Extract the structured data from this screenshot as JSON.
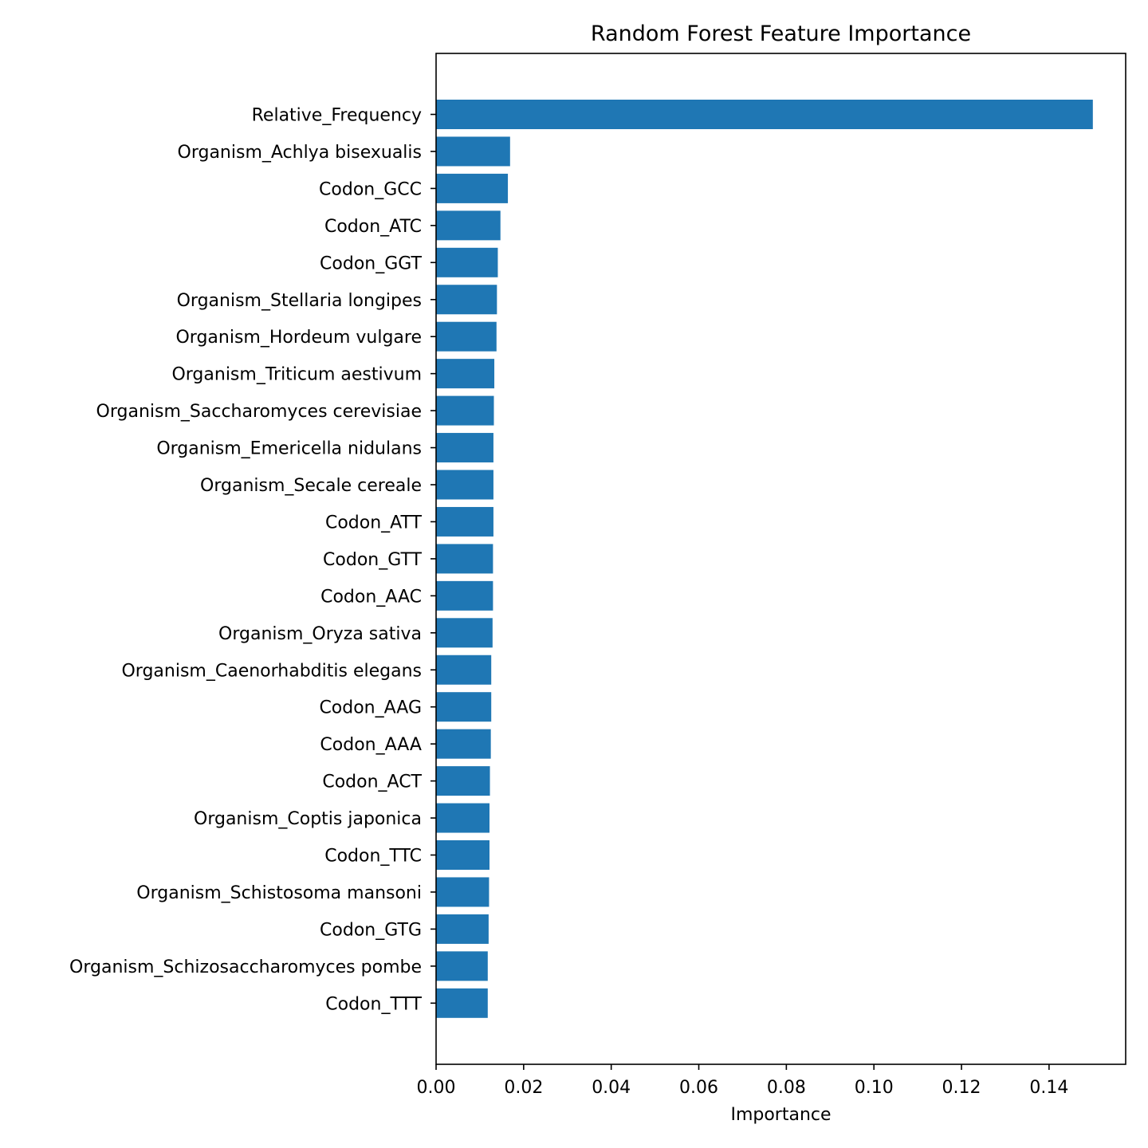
{
  "chart_data": {
    "type": "bar",
    "orientation": "horizontal",
    "title": "Random Forest Feature Importance",
    "xlabel": "Importance",
    "ylabel": "",
    "xlim": [
      0.0,
      0.1575
    ],
    "xticks": [
      0.0,
      0.02,
      0.04,
      0.06,
      0.08,
      0.1,
      0.12,
      0.14
    ],
    "xtick_labels": [
      "0.00",
      "0.02",
      "0.04",
      "0.06",
      "0.08",
      "0.10",
      "0.12",
      "0.14"
    ],
    "grid": false,
    "bar_color": "#1f77b4",
    "categories": [
      "Relative_Frequency",
      "Organism_Achlya bisexualis",
      "Codon_GCC",
      "Codon_ATC",
      "Codon_GGT",
      "Organism_Stellaria longipes",
      "Organism_Hordeum vulgare",
      "Organism_Triticum aestivum",
      "Organism_Saccharomyces cerevisiae",
      "Organism_Emericella nidulans",
      "Organism_Secale cereale",
      "Codon_ATT",
      "Codon_GTT",
      "Codon_AAC",
      "Organism_Oryza sativa",
      "Organism_Caenorhabditis elegans",
      "Codon_AAG",
      "Codon_AAA",
      "Codon_ACT",
      "Organism_Coptis japonica",
      "Codon_TTC",
      "Organism_Schistosoma mansoni",
      "Codon_GTG",
      "Organism_Schizosaccharomyces pombe",
      "Codon_TTT"
    ],
    "values": [
      0.15,
      0.0169,
      0.0164,
      0.0147,
      0.0141,
      0.0139,
      0.0138,
      0.0133,
      0.0132,
      0.0131,
      0.0131,
      0.0131,
      0.013,
      0.013,
      0.0129,
      0.0126,
      0.0126,
      0.0125,
      0.0123,
      0.0122,
      0.0122,
      0.0121,
      0.012,
      0.0118,
      0.0118
    ]
  }
}
